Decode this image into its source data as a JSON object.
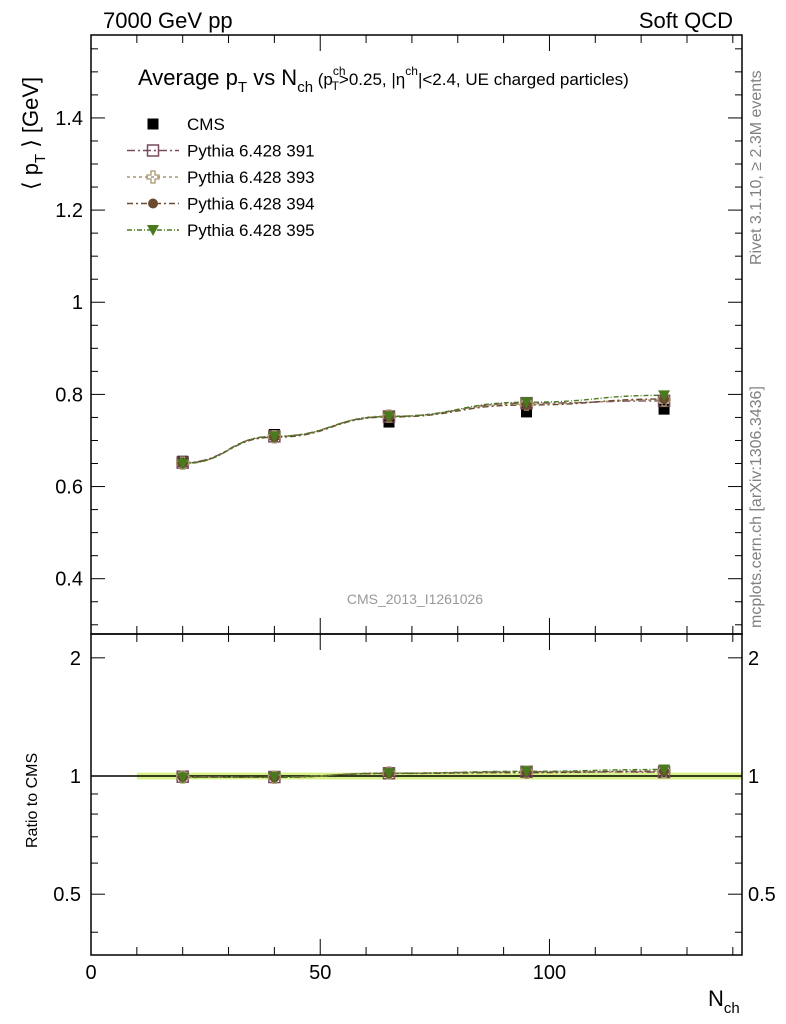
{
  "header": {
    "left": "7000 GeV pp",
    "right": "Soft QCD"
  },
  "side_text": {
    "rivet": "Rivet 3.1.10, ≥ 2.3M events",
    "mcplots": "mcplots.cern.ch [arXiv:1306.3436]"
  },
  "colors": {
    "cms": "#000000",
    "p391": "#7a4a5e",
    "p393": "#a89870",
    "p394": "#6b4a32",
    "p395": "#4a7a1e",
    "band": "#d8f28a"
  },
  "chart_data": [
    {
      "type": "scatter",
      "title_main": "Average p",
      "title_sub": "T",
      "title_mid": " vs N",
      "title_ch": "ch",
      "title_cuts": " (p",
      "title_cuts_sup": "ch",
      "title_cuts_sub": "T",
      "title_cuts_rest1": ">0.25, |η",
      "title_cuts_sup2": "ch",
      "title_cuts_rest2": "|<2.4, UE charged particles)",
      "ylabel": "⟨ p",
      "ylabel_sub": "T",
      "ylabel_rest": " ⟩ [GeV]",
      "ylim": [
        0.28,
        1.58
      ],
      "xlim": [
        0,
        142
      ],
      "yticks": [
        0.4,
        0.6,
        0.8,
        1.0,
        1.2,
        1.4
      ],
      "ytick_labels": [
        "0.4",
        "0.6",
        "0.8",
        "1",
        "1.2",
        "1.4"
      ],
      "watermark": "CMS_2013_I1261026",
      "legend_position": "top-left",
      "x": [
        20,
        40,
        65,
        95,
        125
      ],
      "series": [
        {
          "name": "CMS",
          "marker": "filled-square",
          "values": [
            0.655,
            0.713,
            0.74,
            0.762,
            0.768
          ]
        },
        {
          "name": "Pythia 6.428 391",
          "marker": "open-square",
          "values": [
            0.652,
            0.709,
            0.752,
            0.781,
            0.786
          ]
        },
        {
          "name": "Pythia 6.428 393",
          "marker": "open-cross",
          "values": [
            0.651,
            0.708,
            0.753,
            0.779,
            0.788
          ]
        },
        {
          "name": "Pythia 6.428 394",
          "marker": "filled-circle",
          "values": [
            0.651,
            0.707,
            0.751,
            0.777,
            0.79
          ]
        },
        {
          "name": "Pythia 6.428 395",
          "marker": "filled-triangle-down",
          "values": [
            0.65,
            0.709,
            0.752,
            0.783,
            0.798
          ]
        }
      ]
    },
    {
      "type": "scatter",
      "ylabel": "Ratio to CMS",
      "xlabel": "N",
      "xlabel_sub": "ch",
      "xlim": [
        0,
        142
      ],
      "ylim": [
        0.35,
        2.3
      ],
      "xticks": [
        0,
        50,
        100
      ],
      "xtick_labels": [
        "0",
        "50",
        "100"
      ],
      "yticks": [
        0.5,
        1,
        2
      ],
      "ytick_labels": [
        "0.5",
        "1",
        "2"
      ],
      "band": [
        0.98,
        1.02
      ],
      "band_x": [
        10,
        142
      ],
      "x": [
        20,
        40,
        65,
        95,
        125
      ],
      "series": [
        {
          "name": "Pythia 6.428 391",
          "values": [
            0.996,
            0.994,
            1.016,
            1.025,
            1.023
          ]
        },
        {
          "name": "Pythia 6.428 393",
          "values": [
            0.994,
            0.993,
            1.018,
            1.022,
            1.026
          ]
        },
        {
          "name": "Pythia 6.428 394",
          "values": [
            0.994,
            0.992,
            1.015,
            1.02,
            1.029
          ]
        },
        {
          "name": "Pythia 6.428 395",
          "values": [
            0.992,
            0.994,
            1.016,
            1.028,
            1.039
          ]
        }
      ]
    }
  ]
}
